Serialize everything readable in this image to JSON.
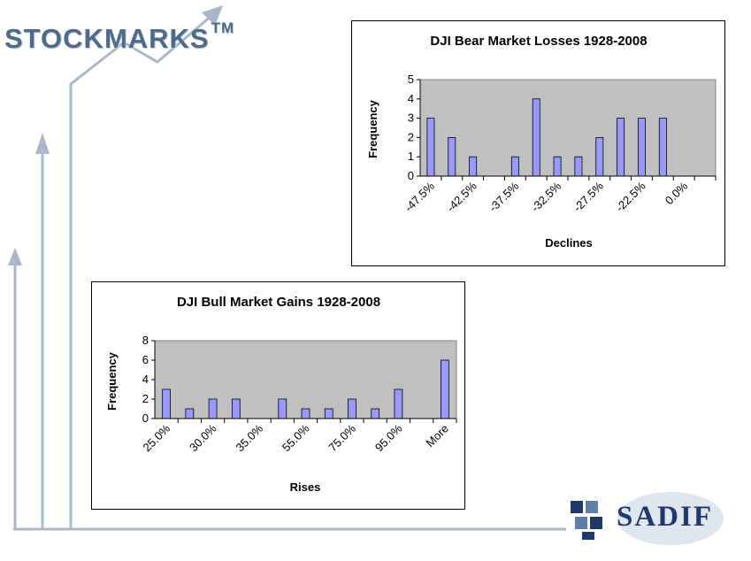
{
  "logo": {
    "text": "STOCKMARKS",
    "tm": "TM"
  },
  "brand": {
    "text": "SADIF"
  },
  "colors": {
    "bar_fill": "#9999ff",
    "plot_bg": "#c0c0c0",
    "arrow": "#a8b8c8",
    "logo": "#4d6a8a"
  },
  "chart_data": [
    {
      "type": "bar",
      "title": "DJI Bear Market Losses 1928-2008",
      "xlabel": "Declines",
      "ylabel": "Frequency",
      "ylim": [
        0,
        5
      ],
      "yticks": [
        "0",
        "1",
        "2",
        "3",
        "4",
        "5"
      ],
      "tick_labels": [
        "-47.5%",
        "-42.5%",
        "-37.5%",
        "-32.5%",
        "-27.5%",
        "-22.5%",
        "0.0%"
      ],
      "values": [
        3,
        2,
        1,
        0,
        1,
        4,
        1,
        1,
        2,
        3,
        3,
        3,
        0,
        0
      ],
      "grid": false,
      "legend": "none"
    },
    {
      "type": "bar",
      "title": "DJI Bull Market Gains 1928-2008",
      "xlabel": "Rises",
      "ylabel": "Frequency",
      "ylim": [
        0,
        8
      ],
      "yticks": [
        "0",
        "2",
        "4",
        "6",
        "8"
      ],
      "tick_labels": [
        "25.0%",
        "30.0%",
        "35.0%",
        "55.0%",
        "75.0%",
        "95.0%",
        "More"
      ],
      "values": [
        3,
        1,
        2,
        2,
        0,
        2,
        1,
        1,
        2,
        1,
        3,
        0,
        6
      ],
      "grid": false,
      "legend": "none"
    }
  ]
}
